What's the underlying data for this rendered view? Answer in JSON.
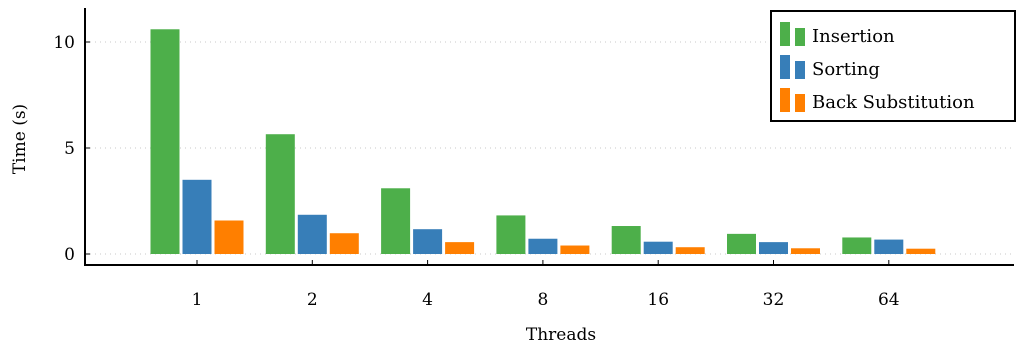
{
  "chart_data": {
    "type": "bar",
    "title": "",
    "xlabel": "Threads",
    "ylabel": "Time (s)",
    "categories": [
      "1",
      "2",
      "4",
      "8",
      "16",
      "32",
      "64"
    ],
    "series": [
      {
        "name": "Insertion",
        "color": "#4daf4a",
        "values": [
          10.6,
          5.65,
          3.1,
          1.82,
          1.32,
          0.95,
          0.78
        ]
      },
      {
        "name": "Sorting",
        "color": "#377eb8",
        "values": [
          3.5,
          1.85,
          1.17,
          0.72,
          0.58,
          0.56,
          0.68
        ]
      },
      {
        "name": "Back Substitution",
        "color": "#ff7f00",
        "values": [
          1.58,
          0.98,
          0.56,
          0.4,
          0.32,
          0.27,
          0.25
        ]
      }
    ],
    "ylim": [
      -0.6,
      11.6
    ],
    "yticks": [
      0,
      5,
      10
    ],
    "grid": true,
    "legend": "top-right"
  }
}
